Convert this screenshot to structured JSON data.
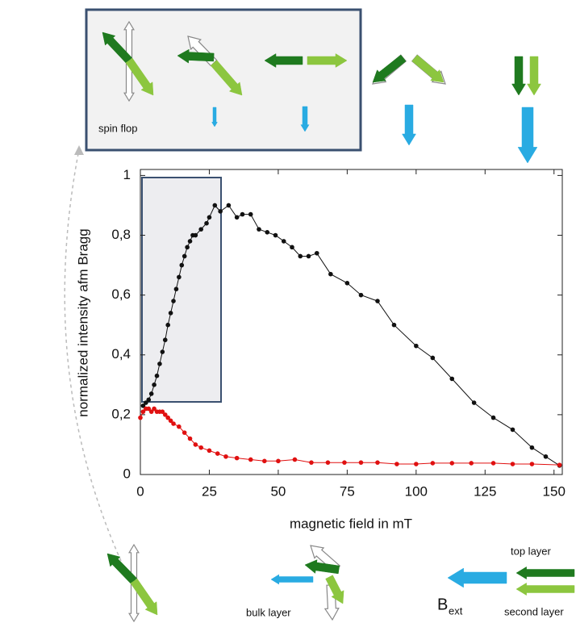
{
  "chart_data": {
    "type": "line",
    "x_label": "magnetic field in mT",
    "y_label": "normalized intensity afm Bragg",
    "xlim": [
      0,
      153
    ],
    "ylim": [
      0,
      1.02
    ],
    "xticks": [
      0,
      25,
      50,
      75,
      100,
      125,
      150
    ],
    "yticks": [
      0,
      {
        "value": 0.2,
        "label": "0,2"
      },
      {
        "value": 0.4,
        "label": "0,4"
      },
      {
        "value": 0.6,
        "label": "0,6"
      },
      {
        "value": 0.8,
        "label": "0,8"
      },
      1
    ],
    "grid": false,
    "series": [
      {
        "color": "#111111",
        "x": [
          1,
          2,
          3,
          4,
          5,
          6,
          7,
          8,
          9,
          10,
          11,
          12,
          13,
          14,
          15,
          16,
          17,
          18,
          19,
          20,
          22,
          24,
          25,
          27,
          29,
          32,
          35,
          37,
          40,
          43,
          46,
          49,
          52,
          55,
          58,
          61,
          64,
          69,
          75,
          80,
          86,
          92,
          100,
          106,
          113,
          121,
          128,
          135,
          142,
          147,
          152
        ],
        "values": [
          0.23,
          0.24,
          0.25,
          0.27,
          0.3,
          0.33,
          0.37,
          0.41,
          0.45,
          0.5,
          0.54,
          0.58,
          0.62,
          0.66,
          0.7,
          0.73,
          0.76,
          0.78,
          0.8,
          0.8,
          0.82,
          0.84,
          0.86,
          0.9,
          0.88,
          0.9,
          0.86,
          0.87,
          0.87,
          0.82,
          0.81,
          0.8,
          0.78,
          0.76,
          0.73,
          0.73,
          0.74,
          0.67,
          0.64,
          0.6,
          0.58,
          0.5,
          0.43,
          0.39,
          0.32,
          0.24,
          0.19,
          0.15,
          0.09,
          0.06,
          0.03
        ]
      },
      {
        "color": "#e01010",
        "x": [
          0,
          1,
          2,
          3,
          4,
          5,
          6,
          7,
          8,
          9,
          10,
          11,
          12,
          14,
          16,
          18,
          20,
          22,
          25,
          28,
          31,
          35,
          40,
          45,
          50,
          56,
          62,
          68,
          74,
          80,
          86,
          93,
          100,
          106,
          113,
          120,
          128,
          135,
          142,
          152
        ],
        "values": [
          0.19,
          0.21,
          0.22,
          0.22,
          0.21,
          0.22,
          0.21,
          0.21,
          0.21,
          0.2,
          0.19,
          0.18,
          0.17,
          0.16,
          0.14,
          0.12,
          0.1,
          0.09,
          0.08,
          0.07,
          0.06,
          0.055,
          0.05,
          0.045,
          0.045,
          0.05,
          0.04,
          0.04,
          0.04,
          0.04,
          0.04,
          0.035,
          0.035,
          0.038,
          0.038,
          0.038,
          0.038,
          0.035,
          0.035,
          0.032
        ]
      }
    ],
    "annotations": [
      "spin flop",
      "bulk layer",
      "top layer",
      "second layer",
      "B",
      "ext"
    ]
  }
}
